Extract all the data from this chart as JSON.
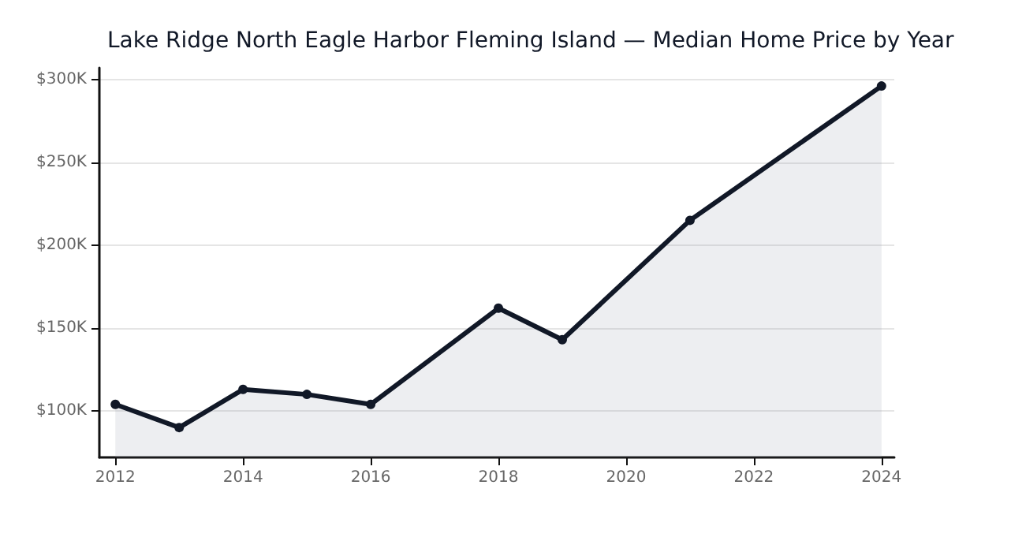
{
  "chart_data": {
    "type": "area",
    "title": "Lake Ridge North Eagle Harbor Fleming Island — Median Home Price by Year",
    "x": [
      2012,
      2013,
      2014,
      2015,
      2016,
      2018,
      2019,
      2021,
      2024
    ],
    "series": [
      {
        "color": "#111827",
        "values": [
          104,
          90,
          113,
          110,
          104,
          162,
          143,
          215,
          296
        ]
      }
    ],
    "xlim": [
      2011.75,
      2024.2
    ],
    "xticks": [
      2012,
      2014,
      2016,
      2018,
      2020,
      2022,
      2024
    ],
    "ylim": [
      72,
      307
    ],
    "yticks": [
      {
        "value": 100,
        "label": "$100K"
      },
      {
        "value": 150,
        "label": "$150K"
      },
      {
        "value": 200,
        "label": "$200K"
      },
      {
        "value": 250,
        "label": "$250K"
      },
      {
        "value": 300,
        "label": "$300K"
      }
    ],
    "grid": "y",
    "marker": "circle",
    "line_style": "solid"
  }
}
